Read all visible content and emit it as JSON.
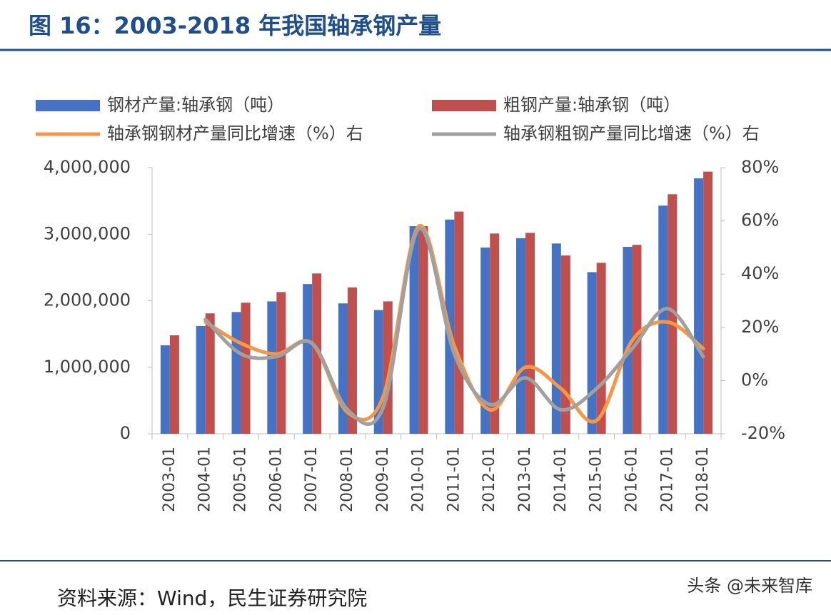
{
  "chart_data": {
    "type": "bar_line",
    "title": "图 16：2003-2018 年我国轴承钢产量",
    "source": "资料来源：Wind，民生证券研究院",
    "watermark": "头条 @未来智库",
    "categories": [
      "2003-01",
      "2004-01",
      "2005-01",
      "2006-01",
      "2007-01",
      "2008-01",
      "2009-01",
      "2010-01",
      "2011-01",
      "2012-01",
      "2013-01",
      "2014-01",
      "2015-01",
      "2016-01",
      "2017-01",
      "2018-01"
    ],
    "series": [
      {
        "name": "钢材产量:轴承钢（吨）",
        "type": "bar",
        "color": "#4472c4",
        "values": [
          1330000,
          1620000,
          1830000,
          1990000,
          2250000,
          1960000,
          1860000,
          3120000,
          3220000,
          2800000,
          2940000,
          2860000,
          2430000,
          2810000,
          3430000,
          3840000
        ]
      },
      {
        "name": "粗钢产量:轴承钢（吨）",
        "type": "bar",
        "color": "#c0504d",
        "values": [
          1480000,
          1810000,
          1970000,
          2130000,
          2410000,
          2200000,
          1990000,
          3120000,
          3340000,
          3010000,
          3020000,
          2680000,
          2570000,
          2840000,
          3600000,
          3940000
        ]
      },
      {
        "name": "轴承钢钢材产量同比增速（%）右",
        "type": "line",
        "axis": "y2",
        "color": "#f79646",
        "values": [
          null,
          22,
          14,
          10,
          14,
          -12,
          -6,
          58,
          13,
          -11,
          5,
          -3,
          -15,
          15,
          22,
          12
        ]
      },
      {
        "name": "轴承钢粗钢产量同比增速（%）右",
        "type": "line",
        "axis": "y2",
        "color": "#a0a0a0",
        "values": [
          null,
          23,
          10,
          9,
          14,
          -11,
          -10,
          57,
          10,
          -9,
          1,
          -11,
          -3,
          12,
          27,
          9
        ]
      }
    ],
    "ylim": [
      0,
      4000000
    ],
    "yticks": [
      0,
      {
        "value": 1000000,
        "label": "1,000,000"
      },
      {
        "value": 2000000,
        "label": "2,000,000"
      },
      {
        "value": 3000000,
        "label": "3,000,000"
      },
      {
        "value": 4000000,
        "label": "4,000,000"
      }
    ],
    "y2lim": [
      -20,
      80
    ],
    "y2ticks": [
      {
        "value": -20,
        "label": "-20%"
      },
      {
        "value": 0,
        "label": "0%"
      },
      {
        "value": 20,
        "label": "20%"
      },
      {
        "value": 40,
        "label": "40%"
      },
      {
        "value": 60,
        "label": "60%"
      },
      {
        "value": 80,
        "label": "80%"
      }
    ]
  }
}
